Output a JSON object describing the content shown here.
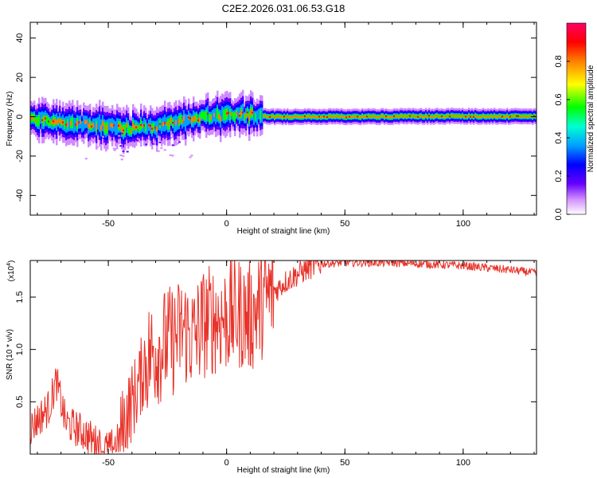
{
  "title": "C2E2.2026.031.06.53.G18",
  "chart_data": [
    {
      "type": "heatmap",
      "description_of_content": "Spectrogram of signal frequency vs height of straight line",
      "xlabel": "Height of straight line (km)",
      "ylabel": "Frequency (Hz)",
      "xlim": [
        -83,
        131
      ],
      "ylim": [
        -50,
        48
      ],
      "xticks": [
        -50,
        0,
        50,
        100
      ],
      "xtick_labels": [
        "-50",
        "0",
        "50",
        "100"
      ],
      "yticks": [
        -40,
        -20,
        0,
        20,
        40
      ],
      "ytick_labels": [
        "-40",
        "-20",
        "0",
        "20",
        "40"
      ],
      "grid": false,
      "colorbar": {
        "label": "Normalized spectral amplitude",
        "range": [
          0,
          1
        ],
        "ticks": [
          0.0,
          0.2,
          0.4,
          0.6,
          0.8
        ],
        "tick_labels": [
          "0.0",
          "0.2",
          "0.4",
          "0.6",
          "0.8"
        ],
        "colors": [
          "#ffffff",
          "#d08cff",
          "#6600ff",
          "#0000ff",
          "#00a0ff",
          "#00ffd0",
          "#00ff00",
          "#ffff00",
          "#ff8000",
          "#ff0000",
          "#ff0066"
        ]
      },
      "trace": {
        "center_frequency_points": [
          {
            "x": -83,
            "y": -1
          },
          {
            "x": -70,
            "y": -3
          },
          {
            "x": -60,
            "y": -4
          },
          {
            "x": -50,
            "y": -5
          },
          {
            "x": -40,
            "y": -6
          },
          {
            "x": -30,
            "y": -5
          },
          {
            "x": -20,
            "y": -2
          },
          {
            "x": -10,
            "y": 0
          },
          {
            "x": 0,
            "y": 0.5
          },
          {
            "x": 10,
            "y": 1
          },
          {
            "x": 20,
            "y": 0
          },
          {
            "x": 50,
            "y": 0
          },
          {
            "x": 100,
            "y": 0.3
          },
          {
            "x": 131,
            "y": 0
          }
        ]
      }
    },
    {
      "type": "line",
      "xlabel": "Height of straight line (km)",
      "ylabel": "SNR (10 * v/v)",
      "scale_label_base": "(x10",
      "scale_label_exp": "4",
      "scale_label_end": ")",
      "xlim": [
        -83,
        131
      ],
      "ylim": [
        0,
        1.85
      ],
      "xticks": [
        -50,
        0,
        50,
        100
      ],
      "xtick_labels": [
        "-50",
        "0",
        "50",
        "100"
      ],
      "yticks": [
        0.5,
        1.0,
        1.5
      ],
      "ytick_labels": [
        "0.5",
        "1.0",
        "1.5"
      ],
      "grid": false,
      "series": [
        {
          "color": "#e8332a",
          "points": [
            {
              "x": -83,
              "y": 0.25
            },
            {
              "x": -75,
              "y": 0.45
            },
            {
              "x": -72,
              "y": 0.7
            },
            {
              "x": -68,
              "y": 0.3
            },
            {
              "x": -60,
              "y": 0.2
            },
            {
              "x": -55,
              "y": 0.1
            },
            {
              "x": -50,
              "y": 0.04
            },
            {
              "x": -46,
              "y": 0.12
            },
            {
              "x": -42,
              "y": 0.4
            },
            {
              "x": -38,
              "y": 0.6
            },
            {
              "x": -34,
              "y": 0.9
            },
            {
              "x": -30,
              "y": 1.0
            },
            {
              "x": -26,
              "y": 1.05
            },
            {
              "x": -22,
              "y": 1.1
            },
            {
              "x": -18,
              "y": 1.2
            },
            {
              "x": -14,
              "y": 1.1
            },
            {
              "x": -10,
              "y": 1.25
            },
            {
              "x": -5,
              "y": 1.3
            },
            {
              "x": 0,
              "y": 1.3
            },
            {
              "x": 5,
              "y": 1.35
            },
            {
              "x": 10,
              "y": 1.3
            },
            {
              "x": 15,
              "y": 1.45
            },
            {
              "x": 20,
              "y": 1.55
            },
            {
              "x": 25,
              "y": 1.65
            },
            {
              "x": 30,
              "y": 1.72
            },
            {
              "x": 35,
              "y": 1.78
            },
            {
              "x": 40,
              "y": 1.82
            },
            {
              "x": 50,
              "y": 1.83
            },
            {
              "x": 60,
              "y": 1.83
            },
            {
              "x": 70,
              "y": 1.83
            },
            {
              "x": 80,
              "y": 1.82
            },
            {
              "x": 90,
              "y": 1.81
            },
            {
              "x": 100,
              "y": 1.8
            },
            {
              "x": 110,
              "y": 1.78
            },
            {
              "x": 120,
              "y": 1.76
            },
            {
              "x": 131,
              "y": 1.73
            }
          ]
        }
      ]
    }
  ]
}
